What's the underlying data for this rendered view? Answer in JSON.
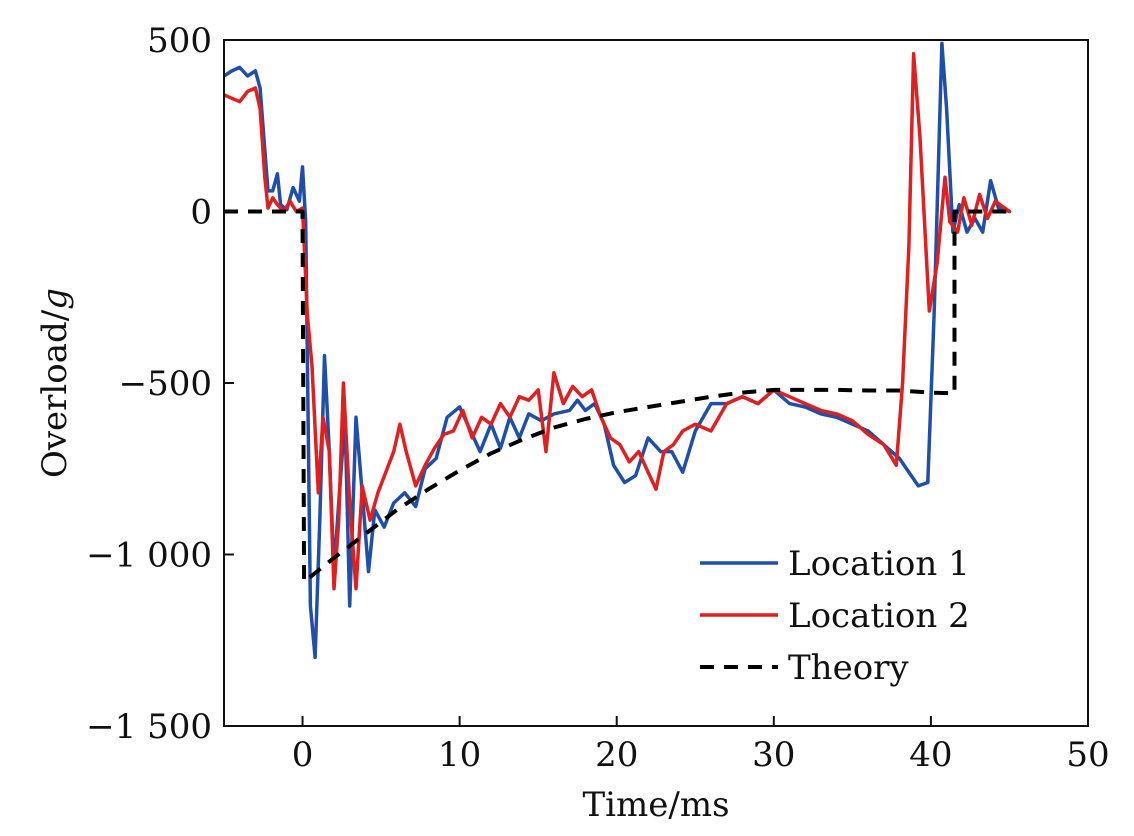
{
  "chart_data": {
    "type": "line",
    "title": "",
    "xlabel": "Time/ms",
    "ylabel": "Overload/g",
    "xlim": [
      -5,
      50
    ],
    "ylim": [
      -1500,
      500
    ],
    "x_ticks": [
      0,
      10,
      20,
      30,
      40,
      50
    ],
    "x_tick_labels": [
      "0",
      "10",
      "20",
      "30",
      "40",
      "50"
    ],
    "y_ticks": [
      500,
      0,
      -500,
      -1000,
      -1500
    ],
    "y_tick_labels": [
      "500",
      "0",
      "−500",
      "−1 000",
      "−1 500"
    ],
    "grid": false,
    "legend_position": "bottom-right",
    "series": [
      {
        "name": "Location 1",
        "color": "#1f4fa8",
        "style": "solid",
        "points": [
          [
            -5,
            395
          ],
          [
            -4.5,
            410
          ],
          [
            -4,
            420
          ],
          [
            -3.5,
            395
          ],
          [
            -3,
            410
          ],
          [
            -2.7,
            360
          ],
          [
            -2.4,
            180
          ],
          [
            -2.2,
            60
          ],
          [
            -1.9,
            60
          ],
          [
            -1.6,
            110
          ],
          [
            -1.4,
            20
          ],
          [
            -1,
            5
          ],
          [
            -0.6,
            70
          ],
          [
            -0.2,
            30
          ],
          [
            0,
            130
          ],
          [
            0.2,
            -30
          ],
          [
            0.5,
            -1150
          ],
          [
            0.8,
            -1300
          ],
          [
            1.1,
            -900
          ],
          [
            1.4,
            -420
          ],
          [
            1.7,
            -700
          ],
          [
            2.0,
            -1050
          ],
          [
            2.3,
            -850
          ],
          [
            2.7,
            -600
          ],
          [
            3.0,
            -1150
          ],
          [
            3.4,
            -600
          ],
          [
            3.8,
            -820
          ],
          [
            4.2,
            -1050
          ],
          [
            4.6,
            -870
          ],
          [
            5.2,
            -920
          ],
          [
            5.8,
            -850
          ],
          [
            6.5,
            -820
          ],
          [
            7.2,
            -860
          ],
          [
            7.8,
            -750
          ],
          [
            8.5,
            -720
          ],
          [
            9.2,
            -600
          ],
          [
            10,
            -570
          ],
          [
            10.6,
            -630
          ],
          [
            11.3,
            -700
          ],
          [
            12,
            -620
          ],
          [
            12.6,
            -690
          ],
          [
            13.2,
            -600
          ],
          [
            13.8,
            -660
          ],
          [
            14.4,
            -590
          ],
          [
            15.2,
            -610
          ],
          [
            16.0,
            -590
          ],
          [
            17.0,
            -580
          ],
          [
            17.5,
            -550
          ],
          [
            18.0,
            -580
          ],
          [
            18.6,
            -560
          ],
          [
            19.2,
            -620
          ],
          [
            19.8,
            -740
          ],
          [
            20.5,
            -790
          ],
          [
            21.2,
            -770
          ],
          [
            22.0,
            -660
          ],
          [
            22.8,
            -700
          ],
          [
            23.5,
            -700
          ],
          [
            24.2,
            -760
          ],
          [
            25.0,
            -640
          ],
          [
            26.0,
            -560
          ],
          [
            27.0,
            -560
          ],
          [
            28.0,
            -540
          ],
          [
            29.0,
            -560
          ],
          [
            30.0,
            -520
          ],
          [
            31.0,
            -560
          ],
          [
            32.0,
            -570
          ],
          [
            33.0,
            -590
          ],
          [
            34.0,
            -600
          ],
          [
            35.0,
            -620
          ],
          [
            36.0,
            -640
          ],
          [
            37.0,
            -680
          ],
          [
            38.0,
            -720
          ],
          [
            38.6,
            -760
          ],
          [
            39.2,
            -800
          ],
          [
            39.8,
            -790
          ],
          [
            40.2,
            -300
          ],
          [
            40.7,
            490
          ],
          [
            41.0,
            300
          ],
          [
            41.4,
            -60
          ],
          [
            41.8,
            20
          ],
          [
            42.3,
            -60
          ],
          [
            42.8,
            -20
          ],
          [
            43.3,
            -60
          ],
          [
            43.8,
            90
          ],
          [
            44.3,
            10
          ],
          [
            45.0,
            0
          ]
        ]
      },
      {
        "name": "Location 2",
        "color": "#e02020",
        "style": "solid",
        "points": [
          [
            -5,
            340
          ],
          [
            -4.5,
            330
          ],
          [
            -4,
            320
          ],
          [
            -3.5,
            350
          ],
          [
            -3,
            360
          ],
          [
            -2.7,
            300
          ],
          [
            -2.4,
            100
          ],
          [
            -2.2,
            10
          ],
          [
            -1.9,
            40
          ],
          [
            -1.6,
            20
          ],
          [
            -1.2,
            0
          ],
          [
            -0.8,
            30
          ],
          [
            -0.4,
            0
          ],
          [
            0,
            10
          ],
          [
            0.3,
            -300
          ],
          [
            0.6,
            -450
          ],
          [
            1.0,
            -820
          ],
          [
            1.3,
            -600
          ],
          [
            1.7,
            -700
          ],
          [
            2.0,
            -1100
          ],
          [
            2.3,
            -900
          ],
          [
            2.6,
            -500
          ],
          [
            3.0,
            -850
          ],
          [
            3.4,
            -1100
          ],
          [
            3.8,
            -800
          ],
          [
            4.3,
            -900
          ],
          [
            4.8,
            -820
          ],
          [
            5.3,
            -760
          ],
          [
            5.8,
            -700
          ],
          [
            6.2,
            -620
          ],
          [
            6.6,
            -700
          ],
          [
            7.2,
            -800
          ],
          [
            7.8,
            -740
          ],
          [
            8.4,
            -690
          ],
          [
            9.0,
            -650
          ],
          [
            9.6,
            -640
          ],
          [
            10.2,
            -580
          ],
          [
            10.8,
            -660
          ],
          [
            11.4,
            -600
          ],
          [
            12.0,
            -620
          ],
          [
            12.6,
            -560
          ],
          [
            13.2,
            -600
          ],
          [
            13.8,
            -540
          ],
          [
            14.4,
            -550
          ],
          [
            15.0,
            -520
          ],
          [
            15.5,
            -700
          ],
          [
            16.0,
            -470
          ],
          [
            16.6,
            -560
          ],
          [
            17.2,
            -510
          ],
          [
            17.8,
            -540
          ],
          [
            18.4,
            -520
          ],
          [
            19.0,
            -600
          ],
          [
            19.6,
            -660
          ],
          [
            20.2,
            -680
          ],
          [
            20.8,
            -730
          ],
          [
            21.4,
            -700
          ],
          [
            22.0,
            -760
          ],
          [
            22.5,
            -810
          ],
          [
            23.0,
            -700
          ],
          [
            23.6,
            -680
          ],
          [
            24.2,
            -640
          ],
          [
            25.0,
            -620
          ],
          [
            26.0,
            -640
          ],
          [
            27.0,
            -560
          ],
          [
            28.0,
            -540
          ],
          [
            29.0,
            -560
          ],
          [
            30.0,
            -520
          ],
          [
            31.0,
            -540
          ],
          [
            32.0,
            -560
          ],
          [
            33.0,
            -580
          ],
          [
            34.0,
            -590
          ],
          [
            35.0,
            -610
          ],
          [
            36.0,
            -650
          ],
          [
            37.0,
            -680
          ],
          [
            37.8,
            -740
          ],
          [
            38.2,
            -500
          ],
          [
            38.6,
            -100
          ],
          [
            38.9,
            460
          ],
          [
            39.3,
            220
          ],
          [
            39.9,
            -290
          ],
          [
            40.4,
            -150
          ],
          [
            40.9,
            100
          ],
          [
            41.2,
            -30
          ],
          [
            41.7,
            -60
          ],
          [
            42.1,
            40
          ],
          [
            42.6,
            -40
          ],
          [
            43.1,
            50
          ],
          [
            43.6,
            -20
          ],
          [
            44.1,
            30
          ],
          [
            45.0,
            0
          ]
        ]
      },
      {
        "name": "Theory",
        "color": "#000000",
        "style": "dashed",
        "points": [
          [
            -5,
            0
          ],
          [
            0,
            0
          ],
          [
            0.1,
            -1080
          ],
          [
            2,
            -1010
          ],
          [
            4,
            -940
          ],
          [
            6,
            -870
          ],
          [
            8,
            -810
          ],
          [
            10,
            -755
          ],
          [
            12,
            -705
          ],
          [
            14,
            -665
          ],
          [
            16,
            -630
          ],
          [
            18,
            -605
          ],
          [
            20,
            -585
          ],
          [
            22,
            -570
          ],
          [
            24,
            -555
          ],
          [
            26,
            -540
          ],
          [
            28,
            -528
          ],
          [
            30,
            -520
          ],
          [
            32,
            -520
          ],
          [
            34,
            -520
          ],
          [
            36,
            -522
          ],
          [
            38,
            -522
          ],
          [
            40,
            -528
          ],
          [
            41.5,
            -530
          ],
          [
            41.5,
            0
          ],
          [
            45,
            0
          ]
        ]
      }
    ]
  }
}
